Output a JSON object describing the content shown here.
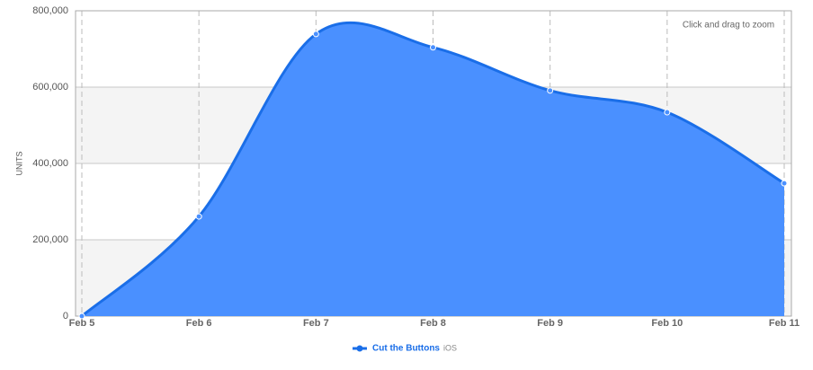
{
  "chart_data": {
    "type": "area",
    "annotation": "Click and drag to zoom",
    "y_label": "UNITS",
    "categories": [
      "Feb 5",
      "Feb 6",
      "Feb 7",
      "Feb 8",
      "Feb 9",
      "Feb 10",
      "Feb 11"
    ],
    "series": [
      {
        "name": "Cut the Buttons",
        "platform": "iOS",
        "color": "#4a90ff",
        "line_color": "#1a6ee8",
        "values": [
          0,
          261000,
          739000,
          704000,
          591000,
          534000,
          348000
        ]
      }
    ],
    "ylim": [
      0,
      800000
    ],
    "yticks": [
      {
        "value": 0,
        "label": "0"
      },
      {
        "value": 200000,
        "label": "200,000"
      },
      {
        "value": 400000,
        "label": "400,000"
      },
      {
        "value": 600000,
        "label": "600,000"
      },
      {
        "value": 800000,
        "label": "800,000"
      }
    ],
    "grid": true
  }
}
